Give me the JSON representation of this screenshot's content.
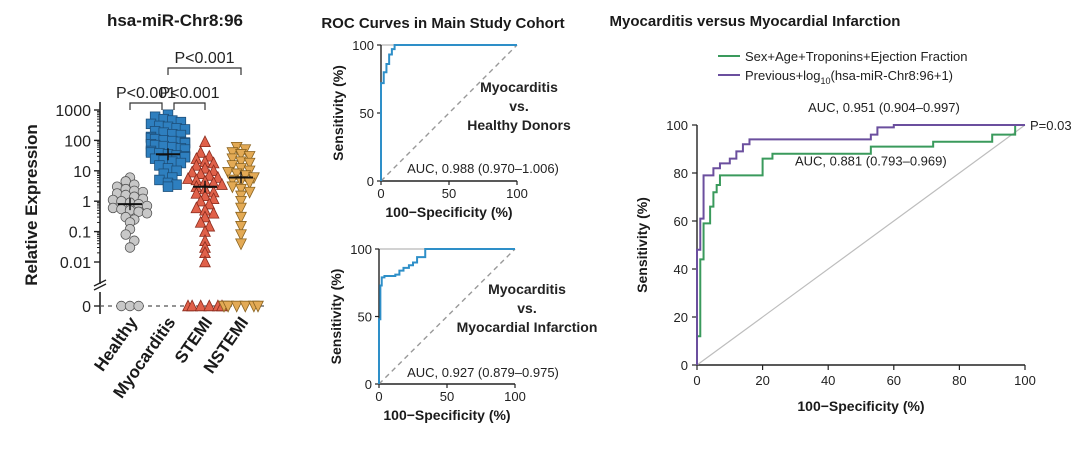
{
  "chart_data": [
    {
      "id": "dotplot",
      "type": "scatter",
      "title": "hsa-miR-Chr8:96",
      "ylabel": "Relative Expression",
      "yscale": "log",
      "ytick_labels": [
        "1000",
        "100",
        "10",
        "1",
        "0.1",
        "0.01",
        "0"
      ],
      "ytick_values": [
        1000,
        100,
        10,
        1,
        0.1,
        0.01,
        0
      ],
      "categories": [
        "Healthy",
        "Myocarditis",
        "STEMI",
        "NSTEMI"
      ],
      "colors": [
        "#c8c8c8",
        "#2e7fbf",
        "#e0614a",
        "#e3aa55"
      ],
      "series": [
        {
          "name": "Healthy",
          "marker": "circle",
          "median": 0.8,
          "values": [
            6,
            4.5,
            3.5,
            3,
            2.5,
            2.2,
            2,
            1.8,
            1.6,
            1.4,
            1.2,
            1.1,
            1,
            0.9,
            0.8,
            0.7,
            0.6,
            0.55,
            0.5,
            0.45,
            0.4,
            0.3,
            0.25,
            0.2,
            0.12,
            0.08,
            0.05,
            0.03,
            0,
            0,
            0
          ]
        },
        {
          "name": "Myocarditis",
          "marker": "square",
          "median": 35,
          "values": [
            700,
            600,
            500,
            450,
            400,
            350,
            300,
            280,
            250,
            230,
            200,
            180,
            160,
            150,
            130,
            120,
            110,
            100,
            95,
            90,
            85,
            80,
            75,
            70,
            65,
            60,
            55,
            50,
            45,
            40,
            38,
            35,
            32,
            30,
            28,
            25,
            22,
            20,
            18,
            15,
            12,
            10,
            8,
            6,
            5,
            4,
            3.5,
            3
          ]
        },
        {
          "name": "STEMI",
          "marker": "triangle-up",
          "median": 3,
          "values": [
            90,
            40,
            30,
            25,
            20,
            18,
            15,
            12,
            10,
            9,
            8,
            7,
            6,
            5.5,
            5,
            4.5,
            4,
            3.5,
            3,
            2.5,
            2,
            1.8,
            1.5,
            1.2,
            1,
            0.8,
            0.6,
            0.5,
            0.4,
            0.3,
            0.2,
            0.15,
            0.1,
            0.05,
            0.03,
            0.02,
            0.01,
            0,
            0,
            0,
            0,
            0,
            0
          ]
        },
        {
          "name": "NSTEMI",
          "marker": "triangle-down",
          "median": 6,
          "values": [
            60,
            50,
            40,
            35,
            30,
            25,
            20,
            18,
            15,
            12,
            10,
            9,
            8,
            7,
            6,
            5,
            4.5,
            4,
            3,
            2.5,
            2,
            1.5,
            1,
            0.6,
            0.3,
            0.15,
            0.08,
            0.04,
            0,
            0,
            0,
            0,
            0,
            0
          ]
        }
      ],
      "significance": [
        {
          "label": "P<0.001",
          "from": "Healthy",
          "to": "Myocarditis",
          "level": 1
        },
        {
          "label": "P<0.001",
          "from": "Myocarditis",
          "to": "STEMI",
          "level": 1
        },
        {
          "label": "P<0.001",
          "from": "Myocarditis",
          "to": "NSTEMI",
          "level": 2
        }
      ]
    },
    {
      "id": "roc_healthy",
      "type": "line",
      "title": "ROC Curves in Main Study Cohort",
      "xlabel": "100−Specificity (%)",
      "ylabel": "Sensitivity (%)",
      "xlim": [
        0,
        100
      ],
      "ylim": [
        0,
        100
      ],
      "xticks": [
        0,
        50,
        100
      ],
      "yticks": [
        0,
        50,
        100
      ],
      "label_lines": [
        "Myocarditis",
        "vs.",
        "Healthy Donors"
      ],
      "auc_text": "AUC, 0.988 (0.970–1.006)",
      "series": [
        {
          "name": "ROC",
          "color": "#2e8fc8",
          "points": [
            [
              0,
              0
            ],
            [
              0,
              72
            ],
            [
              2,
              72
            ],
            [
              2,
              80
            ],
            [
              4,
              80
            ],
            [
              4,
              86
            ],
            [
              6,
              86
            ],
            [
              6,
              93
            ],
            [
              8,
              93
            ],
            [
              8,
              97
            ],
            [
              10,
              97
            ],
            [
              10,
              100
            ],
            [
              100,
              100
            ]
          ]
        }
      ]
    },
    {
      "id": "roc_mi",
      "type": "line",
      "xlabel": "100−Specificity (%)",
      "ylabel": "Sensitivity (%)",
      "xlim": [
        0,
        100
      ],
      "ylim": [
        0,
        100
      ],
      "xticks": [
        0,
        50,
        100
      ],
      "yticks": [
        0,
        50,
        100
      ],
      "label_lines": [
        "Myocarditis",
        "vs.",
        "Myocardial Infarction"
      ],
      "auc_text": "AUC, 0.927 (0.879–0.975)",
      "series": [
        {
          "name": "ROC",
          "color": "#2e8fc8",
          "points": [
            [
              0,
              0
            ],
            [
              0,
              48
            ],
            [
              1,
              48
            ],
            [
              1,
              73
            ],
            [
              2,
              73
            ],
            [
              2,
              79
            ],
            [
              4,
              79
            ],
            [
              4,
              80
            ],
            [
              12,
              80
            ],
            [
              12,
              81
            ],
            [
              15,
              81
            ],
            [
              15,
              84
            ],
            [
              18,
              84
            ],
            [
              18,
              86
            ],
            [
              22,
              86
            ],
            [
              22,
              88
            ],
            [
              25,
              88
            ],
            [
              25,
              90
            ],
            [
              28,
              90
            ],
            [
              28,
              94
            ],
            [
              34,
              94
            ],
            [
              34,
              100
            ],
            [
              100,
              100
            ]
          ]
        }
      ]
    },
    {
      "id": "roc_compare",
      "type": "line",
      "title": "Myocarditis versus Myocardial Infarction",
      "xlabel": "100−Specificity (%)",
      "ylabel": "Sensitivity (%)",
      "xlim": [
        0,
        100
      ],
      "ylim": [
        0,
        100
      ],
      "xticks": [
        0,
        20,
        40,
        60,
        80,
        100
      ],
      "yticks": [
        0,
        20,
        40,
        60,
        80,
        100
      ],
      "legend_position": "top-left",
      "p_value": "P=0.03",
      "auc_labels": [
        "AUC, 0.951 (0.904–0.997)",
        "AUC, 0.881 (0.793–0.969)"
      ],
      "legend": [
        {
          "label": "Sex+Age+Troponins+Ejection Fraction",
          "color": "#3a9a5c"
        },
        {
          "label_prefix": "Previous+log",
          "label_sub": "10",
          "label_suffix": "(hsa-miR-Chr8:96+1)",
          "color": "#6b4f9e"
        }
      ],
      "series": [
        {
          "name": "Sex+Age+Troponins+Ejection Fraction",
          "color": "#3a9a5c",
          "points": [
            [
              0,
              0
            ],
            [
              0,
              12
            ],
            [
              1,
              12
            ],
            [
              1,
              44
            ],
            [
              2,
              44
            ],
            [
              2,
              59
            ],
            [
              4,
              59
            ],
            [
              4,
              66
            ],
            [
              5,
              66
            ],
            [
              5,
              72
            ],
            [
              6,
              72
            ],
            [
              6,
              75
            ],
            [
              7,
              75
            ],
            [
              7,
              79
            ],
            [
              20,
              79
            ],
            [
              20,
              86
            ],
            [
              23,
              86
            ],
            [
              23,
              88
            ],
            [
              53,
              88
            ],
            [
              53,
              91
            ],
            [
              72,
              91
            ],
            [
              72,
              93
            ],
            [
              90,
              93
            ],
            [
              90,
              96
            ],
            [
              97,
              96
            ],
            [
              97,
              100
            ],
            [
              100,
              100
            ]
          ]
        },
        {
          "name": "Previous+log10(hsa-miR-Chr8:96+1)",
          "color": "#6b4f9e",
          "points": [
            [
              0,
              0
            ],
            [
              0,
              48
            ],
            [
              1,
              48
            ],
            [
              1,
              61
            ],
            [
              2,
              61
            ],
            [
              2,
              79
            ],
            [
              5,
              79
            ],
            [
              5,
              82
            ],
            [
              7,
              82
            ],
            [
              7,
              84
            ],
            [
              10,
              84
            ],
            [
              10,
              86
            ],
            [
              12,
              86
            ],
            [
              12,
              89
            ],
            [
              14,
              89
            ],
            [
              14,
              92
            ],
            [
              16,
              92
            ],
            [
              16,
              94
            ],
            [
              53,
              94
            ],
            [
              53,
              96
            ],
            [
              55,
              96
            ],
            [
              55,
              99
            ],
            [
              60,
              99
            ],
            [
              60,
              100
            ],
            [
              100,
              100
            ]
          ]
        }
      ]
    }
  ]
}
